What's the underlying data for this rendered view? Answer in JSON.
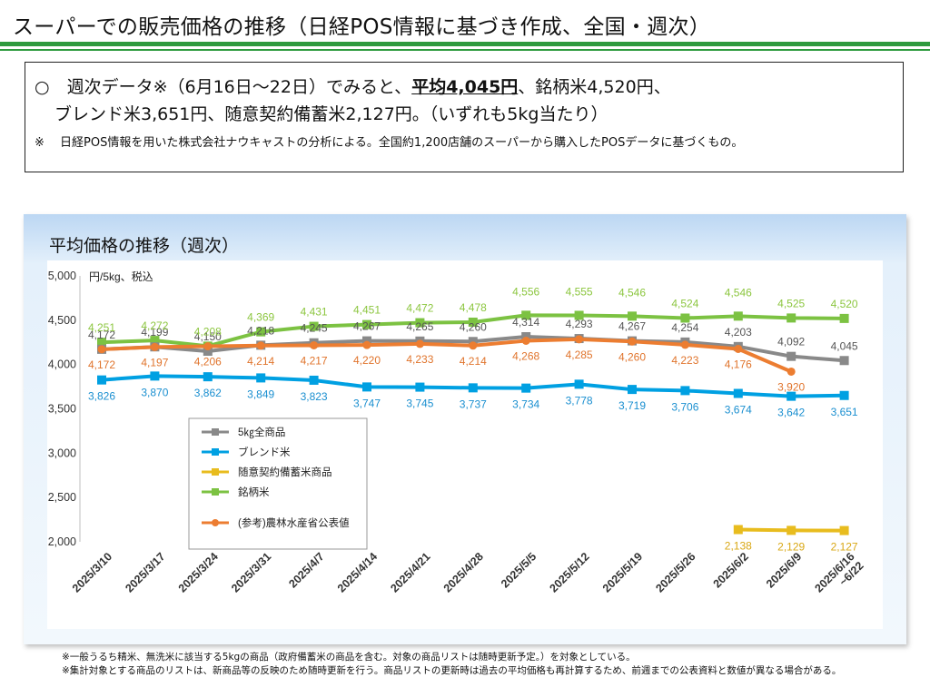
{
  "header": {
    "title": "スーパーでの販売価格の推移（日経POS情報に基づき作成、全国・週次）"
  },
  "summary": {
    "line1_pre": "○　週次データ※（6月16日～22日）でみると、",
    "line1_highlight": "平均4,045円",
    "line1_post": "、銘柄米4,520円、",
    "line2": "ブレンド米3,651円、随意契約備蓄米2,127円。（いずれも5kg当たり）",
    "note_mark": "※",
    "note_text": "日経POS情報を用いた株式会社ナウキャストの分析による。全国約1,200店舗のスーパーから購入したPOSデータに基づくもの。"
  },
  "chart_data": {
    "type": "line",
    "title": "平均価格の推移（週次）",
    "unit_label": "円/5kg、税込",
    "categories": [
      "2025/3/10",
      "2025/3/17",
      "2025/3/24",
      "2025/3/31",
      "2025/4/7",
      "2025/4/14",
      "2025/4/21",
      "2025/4/28",
      "2025/5/5",
      "2025/5/12",
      "2025/5/19",
      "2025/5/26",
      "2025/6/2",
      "2025/6/9",
      "2025/6/16\n~6/22"
    ],
    "ylim": [
      2000,
      5000
    ],
    "yticks": [
      2000,
      2500,
      3000,
      3500,
      4000,
      4500,
      5000
    ],
    "ytick_labels": [
      "2,000",
      "2,500",
      "3,000",
      "3,500",
      "4,000",
      "4,500",
      "5,000"
    ],
    "grid": false,
    "legend_position": "center-left",
    "series": [
      {
        "name": "5㎏全商品",
        "color": "#898989",
        "marker": "square",
        "values": [
          4172,
          4199,
          4150,
          4218,
          4245,
          4267,
          4265,
          4260,
          4314,
          4293,
          4267,
          4254,
          4203,
          4092,
          4045
        ],
        "labels": [
          "4,172",
          "4,199",
          "4,150",
          "4,218",
          "4,245",
          "4,267",
          "4,265",
          "4,260",
          "4,314",
          "4,293",
          "4,267",
          "4,254",
          "4,203",
          "4,092",
          "4,045"
        ]
      },
      {
        "name": "ブレンド米",
        "color": "#00a0e2",
        "marker": "square",
        "values": [
          3826,
          3870,
          3862,
          3849,
          3823,
          3747,
          3745,
          3737,
          3734,
          3778,
          3719,
          3706,
          3674,
          3642,
          3651
        ],
        "labels": [
          "3,826",
          "3,870",
          "3,862",
          "3,849",
          "3,823",
          "3,747",
          "3,745",
          "3,737",
          "3,734",
          "3,778",
          "3,719",
          "3,706",
          "3,674",
          "3,642",
          "3,651"
        ]
      },
      {
        "name": "随意契約備蓄米商品",
        "color": "#e8bc1e",
        "marker": "square",
        "values": [
          null,
          null,
          null,
          null,
          null,
          null,
          null,
          null,
          null,
          null,
          null,
          null,
          2138,
          2129,
          2127
        ],
        "labels": [
          "",
          "",
          "",
          "",
          "",
          "",
          "",
          "",
          "",
          "",
          "",
          "",
          "2,138",
          "2,129",
          "2,127"
        ]
      },
      {
        "name": "銘柄米",
        "color": "#7cc242",
        "marker": "square",
        "values": [
          4251,
          4272,
          4208,
          4369,
          4431,
          4451,
          4472,
          4478,
          4556,
          4555,
          4546,
          4524,
          4546,
          4525,
          4520
        ],
        "labels": [
          "4,251",
          "4,272",
          "4,208",
          "4,369",
          "4,431",
          "4,451",
          "4,472",
          "4,478",
          "4,556",
          "4,555",
          "4,546",
          "4,524",
          "4,546",
          "4,525",
          "4,520"
        ]
      },
      {
        "name": "(参考)農林水産省公表値",
        "color": "#ec7d31",
        "marker": "circle",
        "values": [
          4172,
          4197,
          4206,
          4214,
          4217,
          4220,
          4233,
          4214,
          4268,
          4285,
          4260,
          4223,
          4176,
          3920,
          null
        ],
        "labels": [
          "4,172",
          "4,197",
          "4,206",
          "4,214",
          "4,217",
          "4,220",
          "4,233",
          "4,214",
          "4,268",
          "4,285",
          "4,260",
          "4,223",
          "4,176",
          "3,920",
          ""
        ]
      }
    ]
  },
  "footnotes": {
    "line1": "※一般うるち精米、無洗米に該当する5kgの商品（政府備蓄米の商品を含む。対象の商品リストは随時更新予定。）を対象としている。",
    "line2": "※集計対象とする商品のリストは、新商品等の反映のため随時更新を行う。商品リストの更新時は過去の平均価格も再計算するため、前週までの公表資料と数値が異なる場合がある。"
  }
}
